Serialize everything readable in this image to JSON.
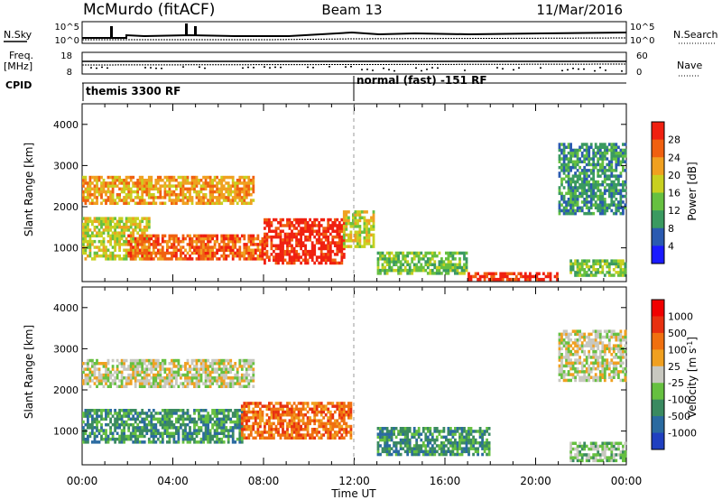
{
  "header": {
    "station": "McMurdo (fitACF)",
    "beam": "Beam 13",
    "date": "11/Mar/2016"
  },
  "noise_panel": {
    "left_label": "N.Sky",
    "right_label": "N.Search",
    "scale_top": "10^5",
    "scale_bottom": "10^0"
  },
  "freq_panel": {
    "left_label_top": "Freq.",
    "left_label_unit": "[MHz]",
    "left_ticks": [
      "18",
      "8"
    ],
    "right_label": "Nave",
    "right_ticks": [
      "60",
      "0"
    ]
  },
  "cpid_panel": {
    "label": "CPID",
    "segments": [
      {
        "name": "themis 3300 RF",
        "start_hour": 0
      },
      {
        "name": "normal (fast) -151 RF",
        "start_hour": 12
      }
    ]
  },
  "chart_data": [
    {
      "type": "heatmap",
      "title": "",
      "xlabel": "Time UT",
      "ylabel": "Slant Range [km]",
      "x_ticks": [
        "00:00",
        "04:00",
        "08:00",
        "12:00",
        "16:00",
        "20:00",
        "00:00"
      ],
      "xlim_hours": [
        0,
        24
      ],
      "y_ticks": [
        1000,
        2000,
        3000,
        4000
      ],
      "ylim": [
        180,
        4500
      ],
      "colorbar": {
        "label": "Power [dB]",
        "ticks": [
          "4",
          "8",
          "12",
          "16",
          "20",
          "24",
          "28"
        ],
        "colors": [
          "#1a1aff",
          "#2a5ab0",
          "#3a9a60",
          "#66c040",
          "#c8d020",
          "#f0a020",
          "#f06010",
          "#f02010"
        ]
      },
      "regions": [
        {
          "t0": 0.0,
          "t1": 7.5,
          "r0": 2050,
          "r1": 2750,
          "v": 5
        },
        {
          "t0": 0.0,
          "t1": 3.0,
          "r0": 700,
          "r1": 1700,
          "v": 4
        },
        {
          "t0": 2.0,
          "t1": 8.0,
          "r0": 700,
          "r1": 1300,
          "v": 6
        },
        {
          "t0": 8.0,
          "t1": 11.5,
          "r0": 600,
          "r1": 1700,
          "v": 7
        },
        {
          "t0": 11.5,
          "t1": 12.8,
          "r0": 1000,
          "r1": 1900,
          "v": 4
        },
        {
          "t0": 13.0,
          "t1": 17.0,
          "r0": 350,
          "r1": 900,
          "v": 3
        },
        {
          "t0": 17.0,
          "t1": 21.0,
          "r0": 200,
          "r1": 400,
          "v": 7
        },
        {
          "t0": 21.5,
          "t1": 24.0,
          "r0": 300,
          "r1": 700,
          "v": 3
        },
        {
          "t0": 21.0,
          "t1": 24.0,
          "r0": 1800,
          "r1": 3500,
          "v": 2
        }
      ]
    },
    {
      "type": "heatmap",
      "title": "",
      "xlabel": "Time UT",
      "ylabel": "Slant Range [km]",
      "x_ticks": [
        "00:00",
        "04:00",
        "08:00",
        "12:00",
        "16:00",
        "20:00",
        "00:00"
      ],
      "xlim_hours": [
        0,
        24
      ],
      "y_ticks": [
        1000,
        2000,
        3000,
        4000
      ],
      "ylim": [
        180,
        4500
      ],
      "colorbar": {
        "label": "Velocity [m s^-1]",
        "ticks": [
          "1000",
          "500",
          "100",
          "25",
          "-25",
          "-100",
          "-500",
          "-1000"
        ],
        "colors": [
          "#2040c0",
          "#2a6aa0",
          "#3a8a60",
          "#66c040",
          "#c8c8c0",
          "#f0a020",
          "#f07010",
          "#e83010",
          "#f00000"
        ]
      },
      "regions": [
        {
          "t0": 0.0,
          "t1": 7.5,
          "r0": 2050,
          "r1": 2750,
          "v": 4
        },
        {
          "t0": 0.0,
          "t1": 7.0,
          "r0": 700,
          "r1": 1500,
          "v": 2
        },
        {
          "t0": 7.0,
          "t1": 11.8,
          "r0": 800,
          "r1": 1700,
          "v": 6
        },
        {
          "t0": 13.0,
          "t1": 18.0,
          "r0": 400,
          "r1": 1100,
          "v": 2
        },
        {
          "t0": 21.5,
          "t1": 24.0,
          "r0": 250,
          "r1": 700,
          "v": 3
        },
        {
          "t0": 21.0,
          "t1": 24.0,
          "r0": 2200,
          "r1": 3400,
          "v": 4
        }
      ]
    }
  ]
}
